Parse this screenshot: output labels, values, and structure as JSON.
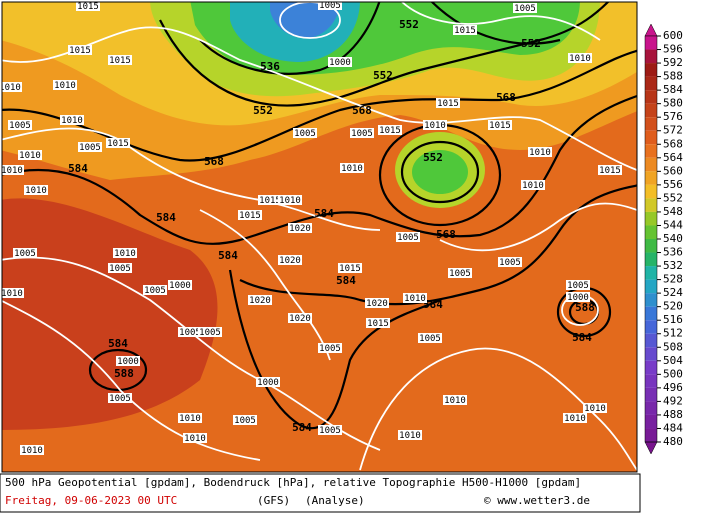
{
  "colorbar": {
    "labels": [
      600,
      596,
      592,
      588,
      584,
      580,
      576,
      572,
      568,
      564,
      560,
      556,
      552,
      548,
      544,
      540,
      536,
      532,
      528,
      524,
      520,
      516,
      512,
      508,
      504,
      500,
      496,
      492,
      488,
      484,
      480
    ]
  },
  "geopotential_labels": [
    "552",
    "552",
    "536",
    "552",
    "552",
    "568",
    "568",
    "568",
    "552",
    "584",
    "584",
    "584",
    "568",
    "584",
    "584",
    "584",
    "588",
    "584",
    "584",
    "588",
    "584"
  ],
  "pressure_labels": [
    "1015",
    "1015",
    "1015",
    "1010",
    "1010",
    "1005",
    "1010",
    "1005",
    "1015",
    "1010",
    "1010",
    "1005",
    "1010",
    "1005",
    "1005",
    "1000",
    "1010",
    "1005",
    "1005",
    "1000",
    "1005",
    "1010",
    "1010",
    "1010",
    "1000",
    "1005",
    "1005",
    "1005",
    "1010",
    "1000",
    "1005",
    "1015",
    "1005",
    "1010",
    "1015",
    "1015",
    "1010",
    "1015",
    "1010",
    "1010",
    "1015",
    "1005",
    "1005",
    "1005",
    "1015",
    "1005",
    "1010",
    "1010",
    "1010",
    "1010",
    "1005",
    "1000",
    "1015",
    "1020",
    "1020",
    "1020",
    "1020",
    "1005",
    "1005",
    "1010",
    "1020",
    "1010",
    "1015",
    "1015",
    "1010"
  ],
  "footer": {
    "description": "500 hPa Geopotential [gpdam], Bodendruck [hPa], relative Topographie H500-H1000 [gpdam]",
    "date": "Freitag, 09-06-2023  00 UTC",
    "model": "(GFS)",
    "run": "(Analyse)",
    "source": "© www.wetter3.de"
  }
}
